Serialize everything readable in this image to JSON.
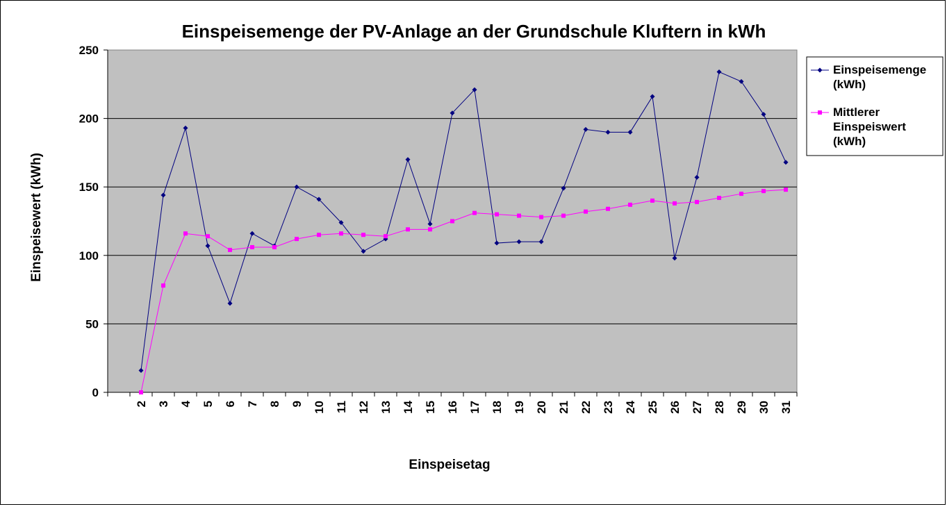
{
  "chart_data": {
    "type": "line",
    "title": "Einspeisemenge der PV-Anlage an der Grundschule Kluftern in kWh",
    "xlabel": "Einspeisetag",
    "ylabel": "Einspeisewert (kWh)",
    "ylim": [
      0,
      250
    ],
    "yticks": [
      "0",
      "50",
      "100",
      "150",
      "200",
      "250"
    ],
    "categories": [
      "2",
      "3",
      "4",
      "5",
      "6",
      "7",
      "8",
      "9",
      "10",
      "11",
      "12",
      "13",
      "14",
      "15",
      "16",
      "17",
      "18",
      "19",
      "20",
      "21",
      "22",
      "23",
      "24",
      "25",
      "26",
      "27",
      "28",
      "29",
      "30",
      "31"
    ],
    "grid": true,
    "plot_background": "#c0c0c0",
    "legend_position": "right",
    "series": [
      {
        "name": "Einspeisemenge (kWh)",
        "legend_lines": [
          "Einspeisemenge",
          "(kWh)"
        ],
        "color": "#000080",
        "marker": "diamond",
        "values": [
          16,
          144,
          193,
          107,
          65,
          116,
          107,
          150,
          141,
          124,
          103,
          112,
          170,
          123,
          204,
          221,
          109,
          110,
          110,
          149,
          192,
          190,
          190,
          216,
          98,
          157,
          234,
          227,
          203,
          168
        ]
      },
      {
        "name": "Mittlerer Einspeiswert (kWh)",
        "legend_lines": [
          "Mittlerer",
          "Einspeiswert",
          "(kWh)"
        ],
        "color": "#ff00ff",
        "marker": "square",
        "values": [
          0,
          78,
          116,
          114,
          104,
          106,
          106,
          112,
          115,
          116,
          115,
          114,
          119,
          119,
          125,
          131,
          130,
          129,
          128,
          129,
          132,
          134,
          137,
          140,
          138,
          139,
          142,
          145,
          147,
          148
        ]
      }
    ]
  }
}
